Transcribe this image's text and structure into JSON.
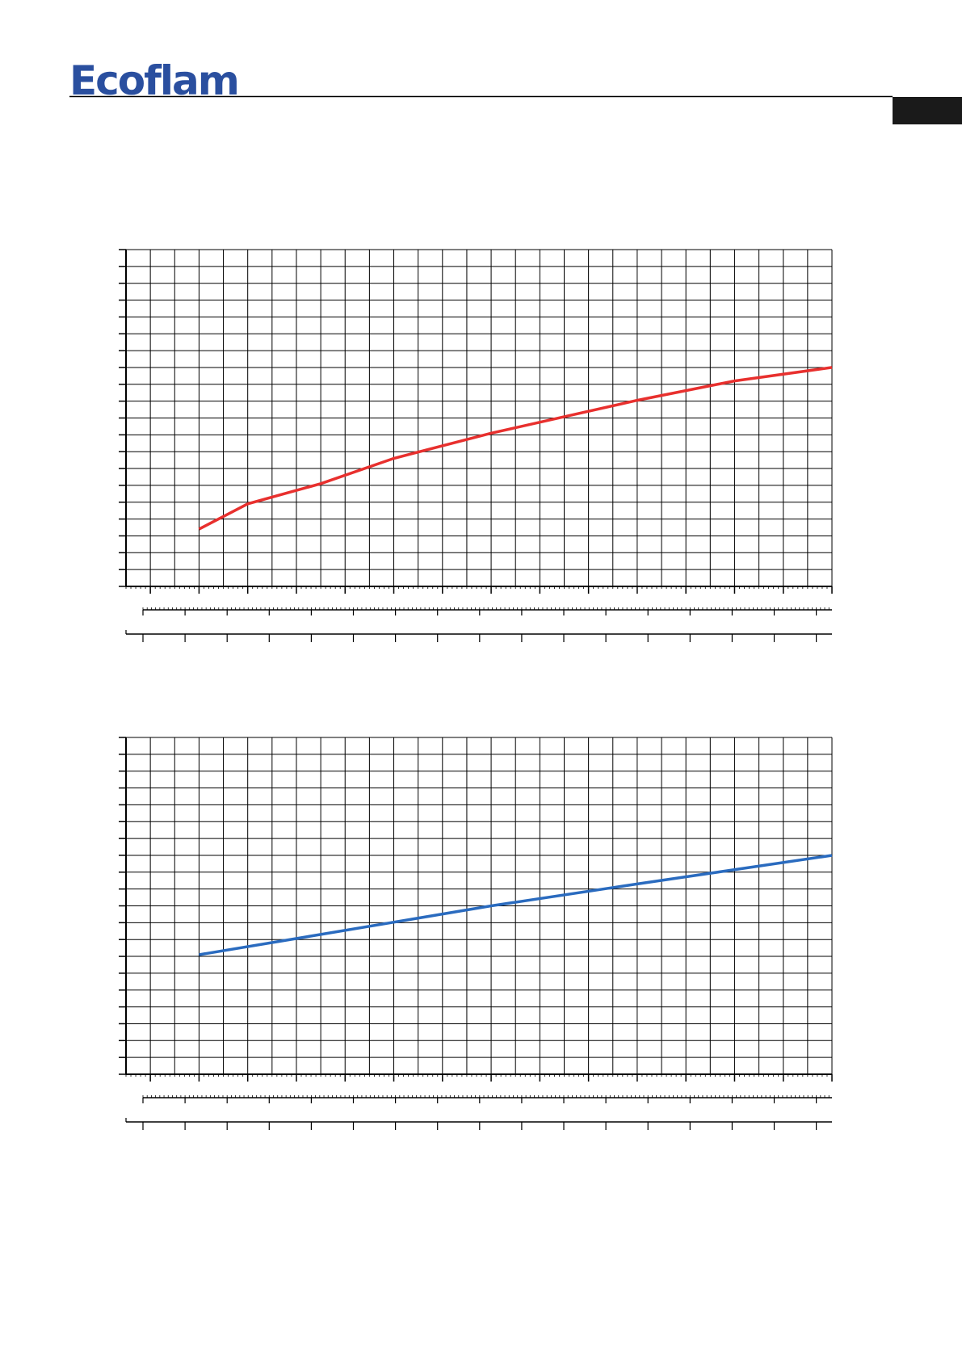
{
  "logo": "Ecoflam",
  "chart_data": [
    {
      "type": "line",
      "color": "#e8302e",
      "grid": true,
      "xlim": [
        0,
        29
      ],
      "ylim": [
        0,
        20
      ],
      "x": [
        3,
        5,
        8,
        11,
        15,
        21,
        25,
        29
      ],
      "values": [
        3.4,
        4.9,
        6.1,
        7.6,
        9.1,
        11.05,
        12.2,
        13
      ]
    },
    {
      "type": "line",
      "color": "#2a6bbf",
      "grid": true,
      "xlim": [
        0,
        29
      ],
      "ylim": [
        0,
        20
      ],
      "x": [
        3,
        8,
        15,
        21,
        29
      ],
      "values": [
        7.1,
        8.3,
        10,
        11.3,
        13
      ]
    }
  ]
}
